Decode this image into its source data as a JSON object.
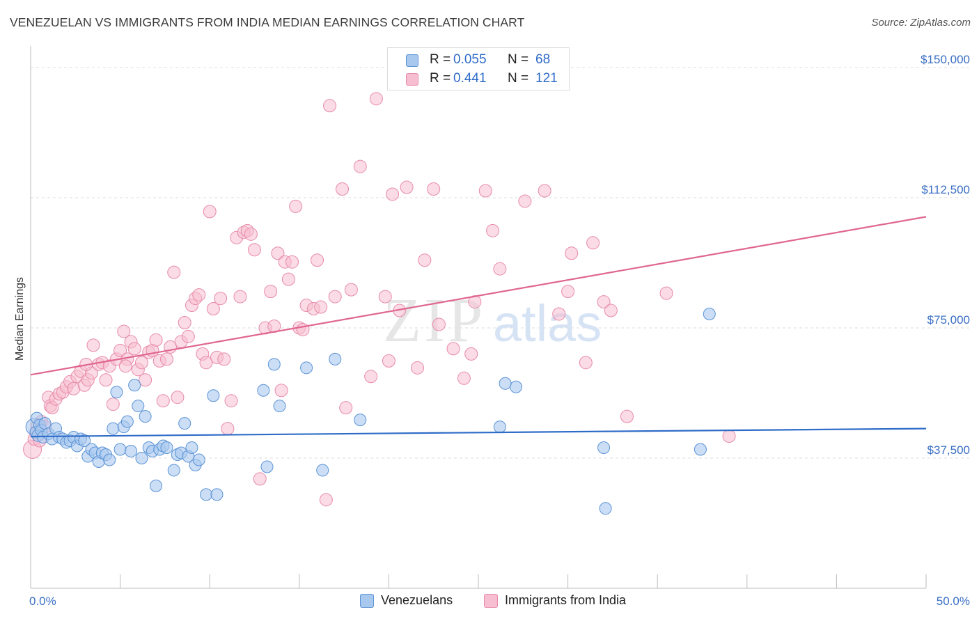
{
  "title": "VENEZUELAN VS IMMIGRANTS FROM INDIA MEDIAN EARNINGS CORRELATION CHART",
  "source": "Source: ZipAtlas.com",
  "watermark": {
    "zip": "ZIP",
    "atlas": "atlas"
  },
  "legend_top": {
    "rows": [
      {
        "r_label": "R =",
        "r_value": "0.055",
        "n_label": "N =",
        "n_value": "68"
      },
      {
        "r_label": "R =",
        "r_value": "0.441",
        "n_label": "N =",
        "n_value": "121"
      }
    ]
  },
  "legend_bottom": {
    "series1": "Venezuelans",
    "series2": "Immigrants from India"
  },
  "colors": {
    "blue_fill": "#a9c8ee",
    "blue_stroke": "#5b93d6",
    "blue_line": "#2f6cc8",
    "pink_fill": "#f7bdd0",
    "pink_stroke": "#e78aa9",
    "pink_line": "#e0668f",
    "grid": "#dddddd",
    "tick_text": "#3a6fc4"
  },
  "chart_data": {
    "type": "scatter",
    "title": "VENEZUELAN VS IMMIGRANTS FROM INDIA MEDIAN EARNINGS CORRELATION CHART",
    "xlabel": "",
    "ylabel": "Median Earnings",
    "xlim": [
      0,
      50
    ],
    "ylim": [
      0,
      155000
    ],
    "x_tick_labels": [
      "0.0%",
      "50.0%"
    ],
    "y_ticks": [
      37500,
      75000,
      112500,
      150000
    ],
    "y_tick_labels": [
      "$37,500",
      "$75,000",
      "$112,500",
      "$150,000"
    ],
    "series": [
      {
        "name": "Venezuelans",
        "R": 0.055,
        "N": 68,
        "trend": {
          "x": [
            0,
            50
          ],
          "y": [
            43700,
            46000
          ]
        },
        "points": [
          [
            0.2,
            46500
          ],
          [
            0.3,
            45000
          ],
          [
            0.35,
            49000
          ],
          [
            0.4,
            44000
          ],
          [
            0.5,
            47000
          ],
          [
            0.6,
            45500
          ],
          [
            0.7,
            43500
          ],
          [
            0.8,
            47500
          ],
          [
            1.0,
            44500
          ],
          [
            1.2,
            43000
          ],
          [
            1.4,
            46000
          ],
          [
            1.6,
            43500
          ],
          [
            1.8,
            43000
          ],
          [
            2.0,
            42000
          ],
          [
            2.2,
            42500
          ],
          [
            2.4,
            43500
          ],
          [
            2.6,
            41000
          ],
          [
            2.8,
            43000
          ],
          [
            3.0,
            42500
          ],
          [
            3.2,
            38000
          ],
          [
            3.4,
            40000
          ],
          [
            3.6,
            39000
          ],
          [
            3.8,
            36500
          ],
          [
            4.0,
            39000
          ],
          [
            4.2,
            38500
          ],
          [
            4.4,
            37000
          ],
          [
            4.6,
            46000
          ],
          [
            4.8,
            56500
          ],
          [
            5.0,
            40000
          ],
          [
            5.2,
            46500
          ],
          [
            5.4,
            48000
          ],
          [
            5.6,
            39500
          ],
          [
            5.8,
            58500
          ],
          [
            6.0,
            52500
          ],
          [
            6.2,
            37500
          ],
          [
            6.4,
            49500
          ],
          [
            6.6,
            40500
          ],
          [
            6.8,
            39500
          ],
          [
            7.0,
            29500
          ],
          [
            7.2,
            40000
          ],
          [
            7.4,
            41000
          ],
          [
            7.6,
            40500
          ],
          [
            8.0,
            34000
          ],
          [
            8.2,
            38500
          ],
          [
            8.4,
            39000
          ],
          [
            8.6,
            47500
          ],
          [
            8.8,
            38000
          ],
          [
            9.0,
            40500
          ],
          [
            9.2,
            35500
          ],
          [
            9.4,
            37000
          ],
          [
            9.8,
            27000
          ],
          [
            10.2,
            55500
          ],
          [
            10.4,
            27000
          ],
          [
            13.0,
            57000
          ],
          [
            13.6,
            64500
          ],
          [
            13.9,
            52500
          ],
          [
            13.2,
            35000
          ],
          [
            15.4,
            63500
          ],
          [
            16.3,
            34000
          ],
          [
            17.0,
            66000
          ],
          [
            18.4,
            48500
          ],
          [
            26.2,
            46500
          ],
          [
            27.1,
            58000
          ],
          [
            32.0,
            40500
          ],
          [
            32.1,
            23000
          ],
          [
            37.4,
            40000
          ],
          [
            37.9,
            79000
          ],
          [
            26.5,
            59000
          ]
        ]
      },
      {
        "name": "Immigrants from India",
        "R": 0.441,
        "N": 121,
        "trend": {
          "x": [
            0,
            50
          ],
          "y": [
            61500,
            107000
          ]
        },
        "points": [
          [
            0.1,
            40000
          ],
          [
            0.2,
            43000
          ],
          [
            0.3,
            45000
          ],
          [
            0.4,
            47000
          ],
          [
            0.5,
            42500
          ],
          [
            0.6,
            48000
          ],
          [
            0.8,
            46500
          ],
          [
            1.0,
            55000
          ],
          [
            1.1,
            52500
          ],
          [
            1.2,
            52000
          ],
          [
            1.4,
            54500
          ],
          [
            1.6,
            56000
          ],
          [
            1.8,
            56500
          ],
          [
            2.0,
            58000
          ],
          [
            2.2,
            59500
          ],
          [
            2.4,
            57500
          ],
          [
            2.6,
            61000
          ],
          [
            2.8,
            62500
          ],
          [
            3.0,
            58500
          ],
          [
            3.2,
            60000
          ],
          [
            3.4,
            62000
          ],
          [
            3.5,
            70000
          ],
          [
            3.8,
            64500
          ],
          [
            4.0,
            65000
          ],
          [
            4.2,
            60000
          ],
          [
            4.4,
            64000
          ],
          [
            4.6,
            53000
          ],
          [
            4.8,
            66000
          ],
          [
            5.0,
            68500
          ],
          [
            5.2,
            74000
          ],
          [
            5.4,
            66000
          ],
          [
            5.6,
            71000
          ],
          [
            5.8,
            69000
          ],
          [
            6.0,
            63000
          ],
          [
            6.2,
            65000
          ],
          [
            6.4,
            60000
          ],
          [
            6.6,
            68000
          ],
          [
            6.8,
            68500
          ],
          [
            7.0,
            71500
          ],
          [
            7.2,
            65500
          ],
          [
            7.4,
            54000
          ],
          [
            7.6,
            66000
          ],
          [
            7.8,
            69500
          ],
          [
            8.0,
            91000
          ],
          [
            8.2,
            55000
          ],
          [
            8.4,
            71000
          ],
          [
            8.6,
            76500
          ],
          [
            8.8,
            72500
          ],
          [
            9.0,
            81500
          ],
          [
            9.2,
            83500
          ],
          [
            9.4,
            84500
          ],
          [
            9.6,
            67500
          ],
          [
            9.8,
            65000
          ],
          [
            10.0,
            108500
          ],
          [
            10.2,
            80500
          ],
          [
            10.4,
            66500
          ],
          [
            10.6,
            83500
          ],
          [
            10.8,
            66000
          ],
          [
            11.0,
            46000
          ],
          [
            11.2,
            54000
          ],
          [
            11.5,
            101000
          ],
          [
            11.7,
            84000
          ],
          [
            11.9,
            102500
          ],
          [
            12.1,
            103000
          ],
          [
            12.3,
            102000
          ],
          [
            12.5,
            97500
          ],
          [
            12.8,
            31500
          ],
          [
            13.1,
            75000
          ],
          [
            13.4,
            85500
          ],
          [
            13.6,
            75500
          ],
          [
            13.8,
            96500
          ],
          [
            14.0,
            57000
          ],
          [
            14.2,
            94000
          ],
          [
            14.4,
            89000
          ],
          [
            14.6,
            94000
          ],
          [
            14.8,
            110000
          ],
          [
            15.0,
            75000
          ],
          [
            15.2,
            74500
          ],
          [
            15.4,
            81500
          ],
          [
            15.8,
            80500
          ],
          [
            16.0,
            94500
          ],
          [
            16.2,
            81000
          ],
          [
            16.5,
            25500
          ],
          [
            16.7,
            139000
          ],
          [
            17.0,
            84000
          ],
          [
            17.4,
            115000
          ],
          [
            17.6,
            52000
          ],
          [
            17.9,
            86000
          ],
          [
            18.4,
            121500
          ],
          [
            19.0,
            61000
          ],
          [
            19.3,
            141000
          ],
          [
            19.8,
            84000
          ],
          [
            20.0,
            65500
          ],
          [
            20.2,
            113500
          ],
          [
            20.6,
            80000
          ],
          [
            21.0,
            115500
          ],
          [
            21.6,
            63500
          ],
          [
            22.0,
            94500
          ],
          [
            22.5,
            115000
          ],
          [
            22.8,
            76000
          ],
          [
            23.6,
            69000
          ],
          [
            24.2,
            60500
          ],
          [
            24.6,
            67500
          ],
          [
            24.8,
            82500
          ],
          [
            25.4,
            114500
          ],
          [
            25.8,
            103000
          ],
          [
            26.2,
            92000
          ],
          [
            27.6,
            111500
          ],
          [
            28.7,
            114500
          ],
          [
            29.5,
            79000
          ],
          [
            30.0,
            85500
          ],
          [
            30.2,
            96500
          ],
          [
            31.0,
            65000
          ],
          [
            31.4,
            99500
          ],
          [
            32.0,
            82500
          ],
          [
            32.4,
            80000
          ],
          [
            33.3,
            49500
          ],
          [
            35.5,
            85000
          ],
          [
            39.0,
            43800
          ],
          [
            5.3,
            64000
          ],
          [
            3.1,
            64500
          ]
        ]
      }
    ]
  }
}
